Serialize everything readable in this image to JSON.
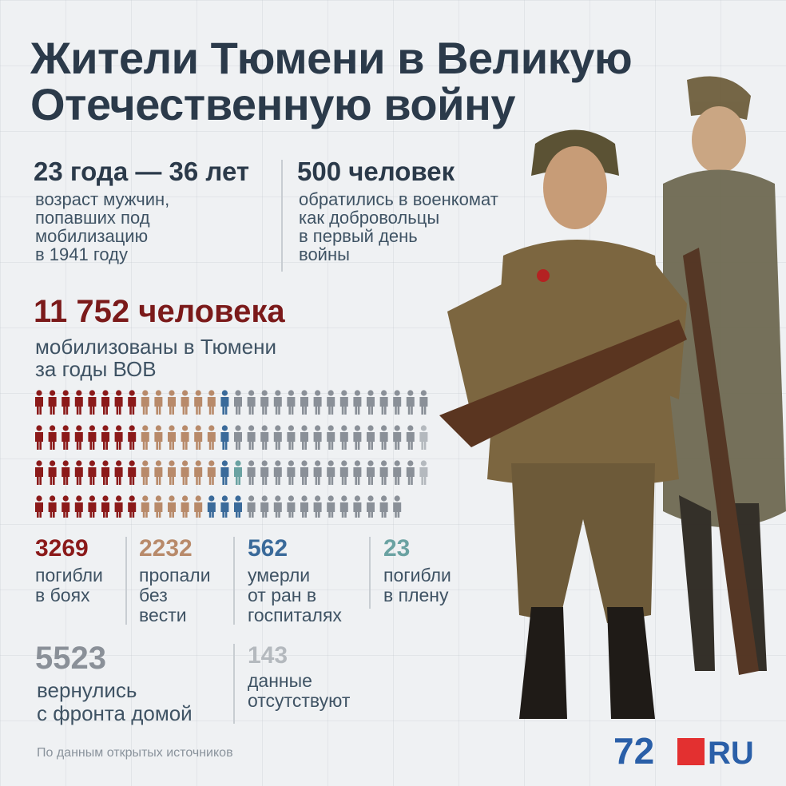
{
  "title_lines": [
    "Жители Тюмени в Великую",
    "Отечественную войну"
  ],
  "stat_age": {
    "value": "23 года — 36 лет",
    "desc_lines": [
      "возраст мужчин,",
      "попавших под",
      "мобилизацию",
      "в 1941 году"
    ]
  },
  "stat_volunteers": {
    "value": "500 человек",
    "desc_lines": [
      "обратились в военкомат",
      "как добровольцы",
      "в первый день",
      "войны"
    ]
  },
  "total": {
    "value": "11 752 человека",
    "desc_lines": [
      "мобилизованы в Тюмени",
      "за годы ВОВ"
    ]
  },
  "categories": [
    {
      "value": "3269",
      "label_lines": [
        "погибли",
        "в боях"
      ],
      "color": "#8b1a1a"
    },
    {
      "value": "2232",
      "label_lines": [
        "пропали",
        "без",
        "вести"
      ],
      "color": "#b88a6a"
    },
    {
      "value": "562",
      "label_lines": [
        "умерли",
        "от ран в",
        "госпиталях"
      ],
      "color": "#3a6a9a"
    },
    {
      "value": "23",
      "label_lines": [
        "погибли",
        "в плену"
      ],
      "color": "#6aa2a2"
    },
    {
      "value": "5523",
      "label_lines": [
        "вернулись",
        "с фронта домой"
      ],
      "color": "#8a9098"
    },
    {
      "value": "143",
      "label_lines": [
        "данные",
        "отсутствуют"
      ],
      "color": "#b4b9be"
    }
  ],
  "source": "По данным открытых источников",
  "logo": {
    "left": "72",
    "right": "RU",
    "colors": {
      "text": "#2a5fa8",
      "square": "#e33030"
    }
  }
}
